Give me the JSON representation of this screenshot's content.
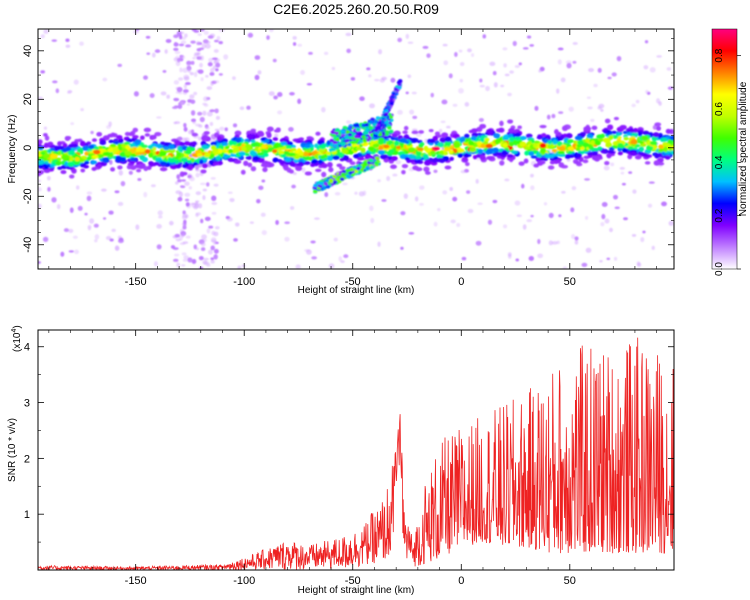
{
  "title": "C2E6.2025.260.20.50.R09",
  "chart_data": [
    {
      "type": "heatmap",
      "title": "C2E6.2025.260.20.50.R09",
      "xlabel": "Height of straight line (km)",
      "ylabel": "Frequency (Hz)",
      "xlim": [
        -195,
        98
      ],
      "ylim": [
        -50,
        49
      ],
      "xticks": [
        -150,
        -100,
        -50,
        0,
        50
      ],
      "yticks": [
        -40,
        -20,
        0,
        20,
        40
      ],
      "colorbar": {
        "label": "Normalized spectral amplitude",
        "range": [
          0.0,
          0.9
        ],
        "ticks": [
          0.0,
          0.2,
          0.4,
          0.6,
          0.8
        ],
        "tick_labels": [
          "0.0",
          "0.2",
          "0.4",
          "0.6",
          "0.8"
        ],
        "colormap": [
          "#ffffff",
          "#c080ff",
          "#8000ff",
          "#0000ff",
          "#00c0ff",
          "#00ff80",
          "#40ff00",
          "#c0ff00",
          "#ffff00",
          "#ff8000",
          "#ff0000",
          "#ff0080"
        ]
      },
      "features": [
        {
          "name": "main band",
          "x_range": [
            -195,
            98
          ],
          "frequency_center": [
            -4,
            4
          ],
          "peak_amplitude": 0.9
        },
        {
          "name": "lower branch",
          "x_range": [
            -68,
            -38
          ],
          "frequency_range": [
            -17,
            -5
          ]
        },
        {
          "name": "upper branch",
          "x_range": [
            -40,
            -28
          ],
          "frequency_range": [
            5,
            27
          ]
        }
      ]
    },
    {
      "type": "line",
      "xlabel": "Height of straight line (km)",
      "ylabel": "SNR (10 * v/v)",
      "y_multiplier": "(x10",
      "y_multiplier_exp": "4",
      "y_multiplier_close": ")",
      "xlim": [
        -195,
        98
      ],
      "ylim": [
        0,
        4.3
      ],
      "xticks": [
        -150,
        -100,
        -50,
        0,
        50
      ],
      "yticks": [
        1,
        2,
        3,
        4
      ],
      "color": "#ee2222",
      "envelope": {
        "x": [
          -195,
          -150,
          -110,
          -95,
          -80,
          -70,
          -55,
          -45,
          -35,
          -30,
          -28,
          -26,
          -22,
          -18,
          -10,
          0,
          10,
          20,
          30,
          40,
          50,
          60,
          70,
          80,
          90,
          98
        ],
        "low": [
          0.0,
          0.0,
          0.0,
          0.0,
          0.0,
          0.0,
          0.0,
          0.05,
          0.2,
          0.4,
          0.3,
          0.2,
          0.05,
          0.1,
          0.2,
          0.4,
          0.5,
          0.4,
          0.4,
          0.3,
          0.3,
          0.3,
          0.3,
          0.3,
          0.3,
          0.3
        ],
        "high": [
          0.08,
          0.06,
          0.1,
          0.3,
          0.55,
          0.45,
          0.6,
          0.8,
          1.4,
          2.2,
          2.9,
          1.2,
          0.5,
          1.5,
          2.3,
          2.6,
          2.8,
          3.0,
          3.2,
          3.6,
          4.0,
          4.1,
          4.0,
          4.2,
          4.0,
          3.8
        ]
      }
    }
  ]
}
